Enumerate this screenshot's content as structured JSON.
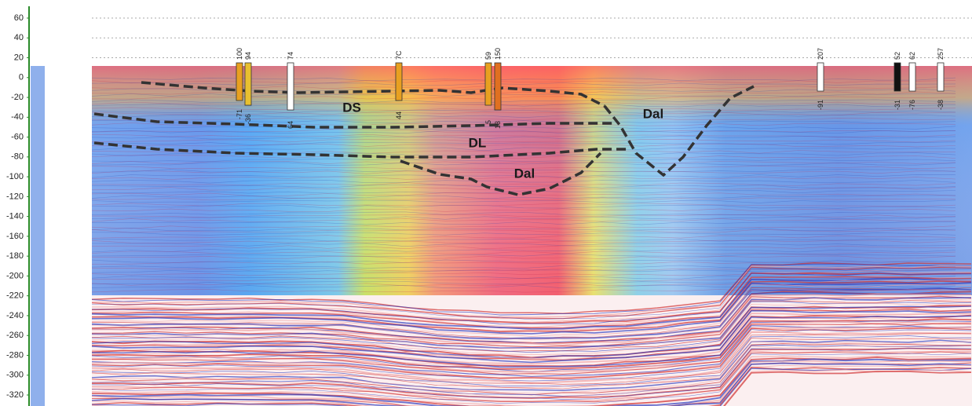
{
  "axis": {
    "ticks": [
      60,
      40,
      20,
      0,
      -20,
      -40,
      -60,
      -80,
      -100,
      -120,
      -140,
      -160,
      -180,
      -200,
      -220,
      -240,
      -260,
      -280,
      -300,
      -320
    ],
    "lim": [
      60,
      -320
    ]
  },
  "annotations": [
    "DS",
    "DL",
    "Dal",
    "Dal"
  ],
  "wells": [
    {
      "top": "100",
      "bottom": "-71"
    },
    {
      "top": "94",
      "bottom": "-36"
    },
    {
      "top": "74",
      "bottom": "64"
    },
    {
      "top": "7C",
      "bottom": "44"
    },
    {
      "top": "59",
      "bottom": "5"
    },
    {
      "top": "150",
      "bottom": "13"
    },
    {
      "top": "207",
      "bottom": "-91"
    },
    {
      "top": "52",
      "bottom": "-31"
    },
    {
      "top": "62",
      "bottom": "-76"
    },
    {
      "top": "257",
      "bottom": "-38"
    }
  ]
}
